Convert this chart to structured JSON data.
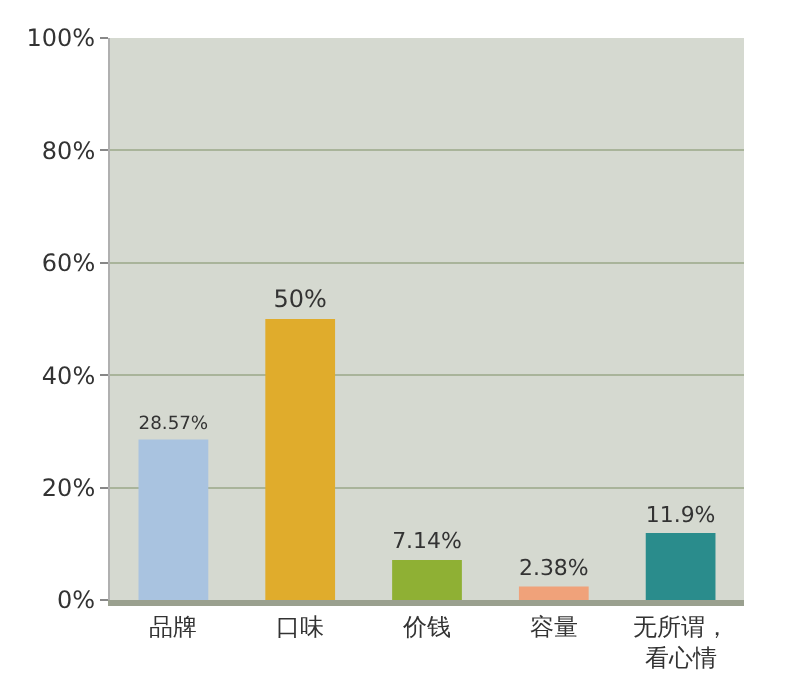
{
  "chart_data": {
    "type": "bar",
    "categories": [
      "品牌",
      "口味",
      "价钱",
      "容量",
      "无所谓，看心情"
    ],
    "values": [
      28.57,
      50,
      7.14,
      2.38,
      11.9
    ],
    "colors": [
      "#a9c3e0",
      "#e0ac2c",
      "#8fb034",
      "#f0a27a",
      "#2a8c8c"
    ],
    "value_labels": [
      "28.57%",
      "50%",
      "7.14%",
      "2.38%",
      "11.9%"
    ],
    "ylim": [
      0,
      100
    ],
    "yticks": [
      {
        "value": 0,
        "label": "0%"
      },
      {
        "value": 20,
        "label": "20%"
      },
      {
        "value": 40,
        "label": "40%"
      },
      {
        "value": 60,
        "label": "60%"
      },
      {
        "value": 80,
        "label": "80%"
      },
      {
        "value": 100,
        "label": "100%"
      }
    ],
    "grid": "y"
  }
}
